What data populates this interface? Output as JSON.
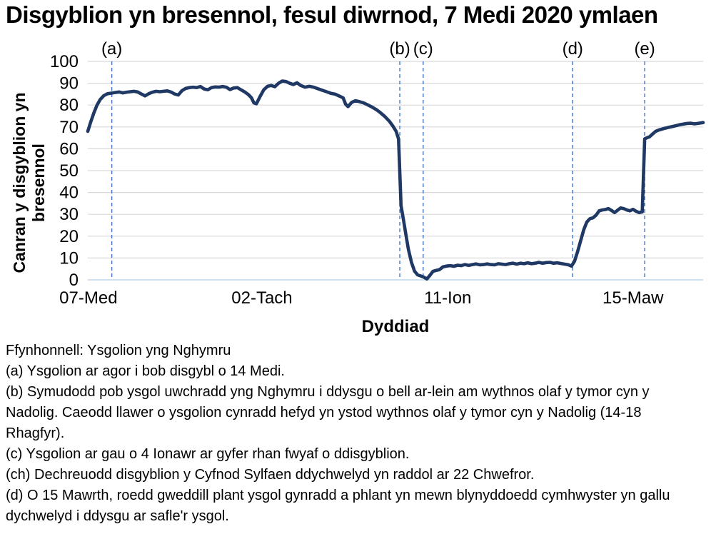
{
  "title": "Disgyblion yn bresennol, fesul diwrnod, 7 Medi 2020 ymlaen",
  "chart_data": {
    "type": "line",
    "title": "Disgyblion yn bresennol, fesul diwrnod, 7 Medi 2020 ymlaen",
    "xlabel": "Dyddiad",
    "ylabel": "Canran y disgyblion yn bresennol",
    "ylabel_lines": [
      "Canran y disgyblion yn",
      "bresennol"
    ],
    "ylim": [
      0,
      100
    ],
    "yticks": [
      0,
      10,
      20,
      30,
      40,
      50,
      60,
      70,
      80,
      90,
      100
    ],
    "grid": true,
    "legend": false,
    "xticks": [
      {
        "label": "07-Med",
        "f": 0.001
      },
      {
        "label": "02-Tach",
        "f": 0.283
      },
      {
        "label": "11-Ion",
        "f": 0.585
      },
      {
        "label": "15-Maw",
        "f": 0.886
      }
    ],
    "annotations": [
      {
        "label": "(a)",
        "f": 0.039
      },
      {
        "label": "(b)",
        "f": 0.507
      },
      {
        "label": "(c)",
        "f": 0.545
      },
      {
        "label": "(d)",
        "f": 0.788
      },
      {
        "label": "(e)",
        "f": 0.905
      }
    ],
    "colors": {
      "line": "#1F3864",
      "annotation_line": "#4472C4",
      "gridline": "#D9D9D9",
      "zero_axis": "#BDD7EE",
      "text": "#000000"
    },
    "series": [
      {
        "name": "Canran y disgyblion yn bresennol",
        "points": [
          [
            0.0,
            68
          ],
          [
            0.005,
            72.5
          ],
          [
            0.01,
            76.5
          ],
          [
            0.015,
            80
          ],
          [
            0.02,
            82.5
          ],
          [
            0.026,
            84.3
          ],
          [
            0.032,
            85.2
          ],
          [
            0.039,
            85.5
          ],
          [
            0.045,
            85.8
          ],
          [
            0.051,
            86
          ],
          [
            0.057,
            85.6
          ],
          [
            0.063,
            85.9
          ],
          [
            0.069,
            86.1
          ],
          [
            0.075,
            86.3
          ],
          [
            0.081,
            86
          ],
          [
            0.087,
            85.1
          ],
          [
            0.093,
            84.2
          ],
          [
            0.099,
            85.2
          ],
          [
            0.105,
            85.9
          ],
          [
            0.111,
            86.3
          ],
          [
            0.117,
            86.1
          ],
          [
            0.123,
            86.3
          ],
          [
            0.129,
            86.5
          ],
          [
            0.135,
            86
          ],
          [
            0.141,
            85.1
          ],
          [
            0.147,
            84.6
          ],
          [
            0.153,
            86.6
          ],
          [
            0.159,
            87.6
          ],
          [
            0.165,
            88
          ],
          [
            0.171,
            88.2
          ],
          [
            0.177,
            88
          ],
          [
            0.183,
            88.5
          ],
          [
            0.189,
            87.4
          ],
          [
            0.195,
            87
          ],
          [
            0.201,
            88
          ],
          [
            0.207,
            88.3
          ],
          [
            0.213,
            88.2
          ],
          [
            0.219,
            88.5
          ],
          [
            0.225,
            88.2
          ],
          [
            0.231,
            87.1
          ],
          [
            0.237,
            87.8
          ],
          [
            0.243,
            88
          ],
          [
            0.249,
            87
          ],
          [
            0.255,
            86
          ],
          [
            0.261,
            84.8
          ],
          [
            0.266,
            83.3
          ],
          [
            0.27,
            81
          ],
          [
            0.274,
            80.6
          ],
          [
            0.28,
            84
          ],
          [
            0.286,
            87
          ],
          [
            0.292,
            88.6
          ],
          [
            0.298,
            89
          ],
          [
            0.304,
            88.4
          ],
          [
            0.31,
            90
          ],
          [
            0.316,
            91
          ],
          [
            0.322,
            90.8
          ],
          [
            0.328,
            90
          ],
          [
            0.334,
            89.4
          ],
          [
            0.34,
            90.2
          ],
          [
            0.346,
            89
          ],
          [
            0.353,
            88.2
          ],
          [
            0.36,
            88.6
          ],
          [
            0.367,
            88.2
          ],
          [
            0.374,
            87.5
          ],
          [
            0.381,
            86.8
          ],
          [
            0.388,
            86.1
          ],
          [
            0.395,
            85.4
          ],
          [
            0.402,
            85
          ],
          [
            0.409,
            84.1
          ],
          [
            0.415,
            83.3
          ],
          [
            0.419,
            80.4
          ],
          [
            0.423,
            79.3
          ],
          [
            0.429,
            81.3
          ],
          [
            0.435,
            82
          ],
          [
            0.441,
            81.6
          ],
          [
            0.448,
            81
          ],
          [
            0.455,
            80.1
          ],
          [
            0.462,
            79.1
          ],
          [
            0.469,
            77.9
          ],
          [
            0.476,
            76.4
          ],
          [
            0.483,
            74.7
          ],
          [
            0.49,
            72.6
          ],
          [
            0.496,
            70.3
          ],
          [
            0.501,
            68
          ],
          [
            0.505,
            64.5
          ],
          [
            0.509,
            34
          ],
          [
            0.513,
            27.5
          ],
          [
            0.517,
            20.5
          ],
          [
            0.521,
            14
          ],
          [
            0.526,
            8
          ],
          [
            0.531,
            4
          ],
          [
            0.536,
            2.3
          ],
          [
            0.541,
            1.8
          ],
          [
            0.546,
            1.2
          ],
          [
            0.551,
            0.4
          ],
          [
            0.556,
            2.1
          ],
          [
            0.561,
            3.9
          ],
          [
            0.566,
            4.3
          ],
          [
            0.571,
            4.6
          ],
          [
            0.577,
            5.9
          ],
          [
            0.583,
            6.3
          ],
          [
            0.589,
            6.5
          ],
          [
            0.595,
            6.2
          ],
          [
            0.601,
            6.7
          ],
          [
            0.607,
            6.5
          ],
          [
            0.613,
            7
          ],
          [
            0.619,
            6.6
          ],
          [
            0.625,
            7
          ],
          [
            0.631,
            7.3
          ],
          [
            0.637,
            6.9
          ],
          [
            0.643,
            7
          ],
          [
            0.649,
            7.3
          ],
          [
            0.655,
            7
          ],
          [
            0.661,
            6.9
          ],
          [
            0.667,
            7.4
          ],
          [
            0.673,
            7.2
          ],
          [
            0.679,
            7
          ],
          [
            0.685,
            7.4
          ],
          [
            0.691,
            7.6
          ],
          [
            0.697,
            7.2
          ],
          [
            0.703,
            7.6
          ],
          [
            0.709,
            7.4
          ],
          [
            0.715,
            7.8
          ],
          [
            0.721,
            7.4
          ],
          [
            0.727,
            7.6
          ],
          [
            0.733,
            8
          ],
          [
            0.739,
            7.6
          ],
          [
            0.745,
            7.9
          ],
          [
            0.751,
            8
          ],
          [
            0.757,
            7.6
          ],
          [
            0.763,
            7.8
          ],
          [
            0.769,
            7.5
          ],
          [
            0.775,
            7.2
          ],
          [
            0.781,
            6.9
          ],
          [
            0.786,
            6.3
          ],
          [
            0.791,
            8.5
          ],
          [
            0.796,
            13
          ],
          [
            0.801,
            18
          ],
          [
            0.806,
            23
          ],
          [
            0.811,
            26.5
          ],
          [
            0.816,
            28
          ],
          [
            0.821,
            28.4
          ],
          [
            0.826,
            29.6
          ],
          [
            0.831,
            31.6
          ],
          [
            0.836,
            32
          ],
          [
            0.841,
            32.2
          ],
          [
            0.846,
            32.6
          ],
          [
            0.851,
            31.8
          ],
          [
            0.856,
            30.8
          ],
          [
            0.861,
            31.9
          ],
          [
            0.866,
            32.9
          ],
          [
            0.871,
            32.6
          ],
          [
            0.876,
            32
          ],
          [
            0.881,
            31.6
          ],
          [
            0.886,
            32.3
          ],
          [
            0.891,
            31.4
          ],
          [
            0.896,
            30.8
          ],
          [
            0.901,
            31.1
          ],
          [
            0.905,
            64.5
          ],
          [
            0.909,
            65.1
          ],
          [
            0.913,
            65.5
          ],
          [
            0.918,
            66.8
          ],
          [
            0.923,
            68
          ],
          [
            0.928,
            68.6
          ],
          [
            0.933,
            69
          ],
          [
            0.938,
            69.4
          ],
          [
            0.944,
            69.8
          ],
          [
            0.95,
            70.2
          ],
          [
            0.956,
            70.6
          ],
          [
            0.962,
            71
          ],
          [
            0.968,
            71.3
          ],
          [
            0.974,
            71.6
          ],
          [
            0.98,
            71.7
          ],
          [
            0.986,
            71.4
          ],
          [
            0.993,
            71.7
          ],
          [
            1.0,
            72
          ]
        ]
      }
    ]
  },
  "footnotes": [
    "Ffynhonnell: Ysgolion yng Nghymru",
    "(a) Ysgolion ar agor i bob disgybl o 14 Medi.",
    "(b) Symudodd pob ysgol uwchradd yng Nghymru i ddysgu o bell ar-lein am wythnos olaf y tymor cyn y Nadolig. Caeodd llawer o ysgolion cynradd hefyd yn ystod wythnos olaf y tymor cyn y Nadolig (14-18 Rhagfyr).",
    "(c) Ysgolion ar gau o 4 Ionawr ar gyfer rhan fwyaf o ddisgyblion.",
    "(ch) Dechreuodd disgyblion y Cyfnod Sylfaen ddychwelyd yn raddol ar 22 Chwefror.",
    "(d)  O 15 Mawrth, roedd gweddill plant ysgol gynradd a phlant yn mewn blynyddoedd cymhwyster yn gallu dychwelyd i ddysgu ar safle'r ysgol."
  ]
}
